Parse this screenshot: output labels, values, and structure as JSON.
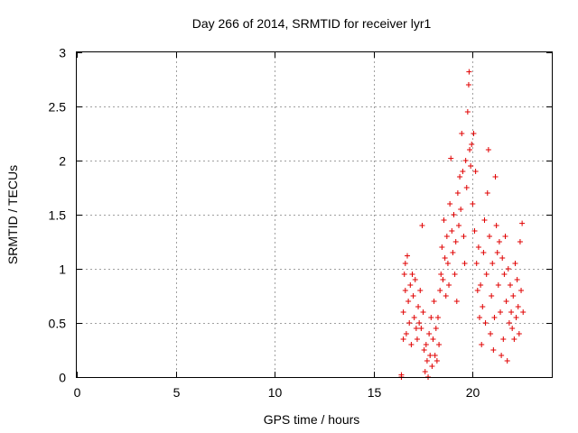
{
  "chart_data": {
    "type": "scatter",
    "title": "Day 266 of 2014, SRMTID for receiver lyr1",
    "xlabel": "GPS time / hours",
    "ylabel": "SRMTID / TECUs",
    "xlim": [
      0,
      24
    ],
    "ylim": [
      0,
      3
    ],
    "xticks": [
      0,
      5,
      10,
      15,
      20
    ],
    "yticks": [
      0,
      0.5,
      1,
      1.5,
      2,
      2.5,
      3
    ],
    "xtick_labels": [
      "0",
      "5",
      "10",
      "15",
      "20"
    ],
    "ytick_labels": [
      "0",
      "0.5",
      "1",
      "1.5",
      "2",
      "2.5",
      "3"
    ],
    "grid": true,
    "marker": "+",
    "color": "#e00000",
    "series": [
      {
        "name": "lyr1",
        "points": [
          [
            16.4,
            0.02
          ],
          [
            16.4,
            0.0
          ],
          [
            16.5,
            0.35
          ],
          [
            16.5,
            0.6
          ],
          [
            16.55,
            0.95
          ],
          [
            16.6,
            1.05
          ],
          [
            16.6,
            0.8
          ],
          [
            16.65,
            0.4
          ],
          [
            16.7,
            1.12
          ],
          [
            16.75,
            0.7
          ],
          [
            16.8,
            0.5
          ],
          [
            16.85,
            0.85
          ],
          [
            16.9,
            0.3
          ],
          [
            16.95,
            0.95
          ],
          [
            17.0,
            0.75
          ],
          [
            17.05,
            0.55
          ],
          [
            17.1,
            0.9
          ],
          [
            17.15,
            0.45
          ],
          [
            17.2,
            0.35
          ],
          [
            17.25,
            0.65
          ],
          [
            17.3,
            0.5
          ],
          [
            17.35,
            0.8
          ],
          [
            17.4,
            0.45
          ],
          [
            17.45,
            1.4
          ],
          [
            17.5,
            0.6
          ],
          [
            17.55,
            0.25
          ],
          [
            17.6,
            0.05
          ],
          [
            17.65,
            0.3
          ],
          [
            17.7,
            0.15
          ],
          [
            17.75,
            0.0
          ],
          [
            17.8,
            0.4
          ],
          [
            17.85,
            0.2
          ],
          [
            17.9,
            0.55
          ],
          [
            17.95,
            0.1
          ],
          [
            18.0,
            0.35
          ],
          [
            18.05,
            0.7
          ],
          [
            18.1,
            0.2
          ],
          [
            18.15,
            0.45
          ],
          [
            18.2,
            0.15
          ],
          [
            18.25,
            0.55
          ],
          [
            18.3,
            0.3
          ],
          [
            18.35,
            0.8
          ],
          [
            18.4,
            0.95
          ],
          [
            18.45,
            1.2
          ],
          [
            18.5,
            0.9
          ],
          [
            18.55,
            1.45
          ],
          [
            18.6,
            1.1
          ],
          [
            18.65,
            0.75
          ],
          [
            18.7,
            1.3
          ],
          [
            18.75,
            1.05
          ],
          [
            18.8,
            0.85
          ],
          [
            18.85,
            1.6
          ],
          [
            18.9,
            2.02
          ],
          [
            18.95,
            1.35
          ],
          [
            19.0,
            1.15
          ],
          [
            19.05,
            1.5
          ],
          [
            19.1,
            0.95
          ],
          [
            19.15,
            1.25
          ],
          [
            19.2,
            0.7
          ],
          [
            19.25,
            1.7
          ],
          [
            19.3,
            1.4
          ],
          [
            19.35,
            1.85
          ],
          [
            19.4,
            1.55
          ],
          [
            19.45,
            2.25
          ],
          [
            19.5,
            1.9
          ],
          [
            19.55,
            1.3
          ],
          [
            19.6,
            1.05
          ],
          [
            19.65,
            2.0
          ],
          [
            19.7,
            1.75
          ],
          [
            19.75,
            2.45
          ],
          [
            19.8,
            2.7
          ],
          [
            19.82,
            2.82
          ],
          [
            19.85,
            2.1
          ],
          [
            19.9,
            1.95
          ],
          [
            19.95,
            2.15
          ],
          [
            20.0,
            1.6
          ],
          [
            20.05,
            2.25
          ],
          [
            20.1,
            1.35
          ],
          [
            20.15,
            1.9
          ],
          [
            20.2,
            1.05
          ],
          [
            20.25,
            0.8
          ],
          [
            20.3,
            1.2
          ],
          [
            20.35,
            0.55
          ],
          [
            20.4,
            0.85
          ],
          [
            20.45,
            0.3
          ],
          [
            20.5,
            0.65
          ],
          [
            20.55,
            1.15
          ],
          [
            20.6,
            1.45
          ],
          [
            20.65,
            0.5
          ],
          [
            20.7,
            0.95
          ],
          [
            20.75,
            1.7
          ],
          [
            20.8,
            2.1
          ],
          [
            20.85,
            1.3
          ],
          [
            20.9,
            0.4
          ],
          [
            20.95,
            0.75
          ],
          [
            21.0,
            1.05
          ],
          [
            21.05,
            0.25
          ],
          [
            21.1,
            0.55
          ],
          [
            21.15,
            1.85
          ],
          [
            21.2,
            1.4
          ],
          [
            21.25,
            1.15
          ],
          [
            21.3,
            0.85
          ],
          [
            21.35,
            1.25
          ],
          [
            21.4,
            0.6
          ],
          [
            21.45,
            0.2
          ],
          [
            21.5,
            1.1
          ],
          [
            21.55,
            0.35
          ],
          [
            21.6,
            0.95
          ],
          [
            21.65,
            1.3
          ],
          [
            21.7,
            0.7
          ],
          [
            21.75,
            0.15
          ],
          [
            21.8,
            1.0
          ],
          [
            21.85,
            0.5
          ],
          [
            21.9,
            0.85
          ],
          [
            21.95,
            0.6
          ],
          [
            22.0,
            0.45
          ],
          [
            22.05,
            0.75
          ],
          [
            22.1,
            0.35
          ],
          [
            22.15,
            1.05
          ],
          [
            22.2,
            0.55
          ],
          [
            22.25,
            0.9
          ],
          [
            22.3,
            0.65
          ],
          [
            22.35,
            0.4
          ],
          [
            22.4,
            1.25
          ],
          [
            22.45,
            0.8
          ],
          [
            22.5,
            1.42
          ],
          [
            22.55,
            0.6
          ]
        ]
      }
    ]
  }
}
